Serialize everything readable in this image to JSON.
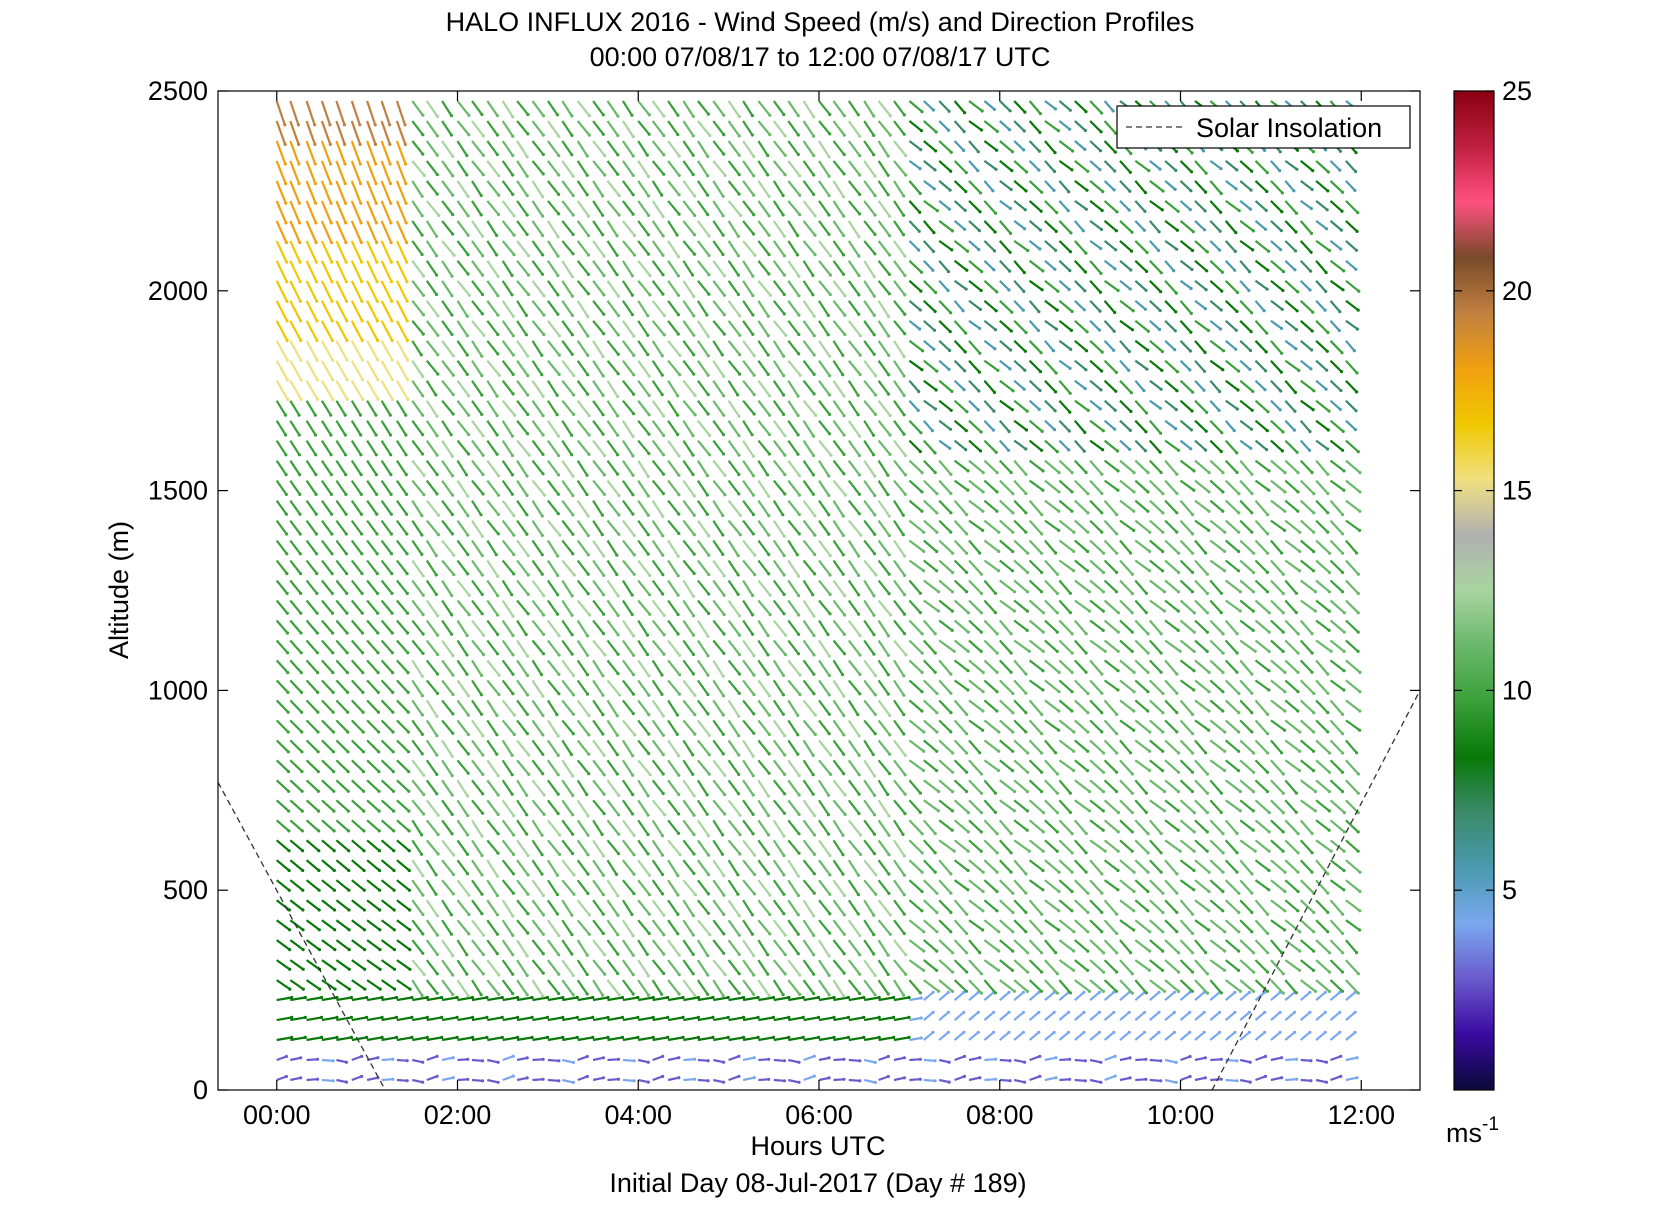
{
  "chart_data": {
    "type": "quiver",
    "title": "HALO INFLUX 2016 - Wind Speed (m/s) and Direction Profiles",
    "subtitle": "00:00 07/08/17 to 12:00 07/08/17  UTC",
    "xlabel": "Hours UTC",
    "ylabel": "Altitude (m)",
    "footer": "Initial Day 08-Jul-2017 (Day # 189)",
    "xlim": [
      -0.65,
      12.65
    ],
    "ylim": [
      0,
      2500
    ],
    "x_ticks": [
      0,
      2,
      4,
      6,
      8,
      10,
      12
    ],
    "x_tick_labels": [
      "00:00",
      "02:00",
      "04:00",
      "06:00",
      "08:00",
      "10:00",
      "12:00"
    ],
    "y_ticks": [
      0,
      500,
      1000,
      1500,
      2000,
      2500
    ],
    "y_tick_labels": [
      "0",
      "500",
      "1000",
      "1500",
      "2000",
      "2500"
    ],
    "colorbar": {
      "range": [
        0,
        25
      ],
      "ticks": [
        5,
        10,
        15,
        20,
        25
      ],
      "tick_labels": [
        "5",
        "10",
        "15",
        "20",
        "25"
      ],
      "unit": "ms",
      "unit_exp": "-1",
      "colors": [
        "#0a0a3a",
        "#3a0aa0",
        "#6a5acd",
        "#7aa8ee",
        "#4a9ab0",
        "#3a8a6a",
        "#087808",
        "#3aa03a",
        "#6ab86a",
        "#a8d4a0",
        "#b0b0b0",
        "#f0e080",
        "#f0c800",
        "#f0a010",
        "#c08040",
        "#7a4a2a",
        "#ff5080",
        "#c02040",
        "#8a0010"
      ]
    },
    "legend": {
      "position": "top-right",
      "entries": [
        {
          "name": "Solar Insolation",
          "style": "dashed",
          "color": "#333333"
        }
      ]
    },
    "solar_insolation": {
      "x": [
        -0.65,
        1.2,
        10.35,
        12.65
      ],
      "y": [
        770,
        0,
        0,
        1000
      ]
    },
    "profile_times": [
      0.0,
      0.15,
      0.33,
      0.5,
      0.66,
      0.83,
      1.0,
      1.16,
      1.33,
      1.5,
      1.66,
      1.83,
      2.0,
      2.16,
      2.33,
      2.5,
      2.66,
      2.83,
      3.0,
      3.16,
      3.33,
      3.5,
      3.66,
      3.83,
      4.0,
      4.16,
      4.33,
      4.5,
      4.66,
      4.83,
      5.0,
      5.16,
      5.33,
      5.5,
      5.66,
      5.83,
      6.0,
      6.16,
      6.33,
      6.5,
      6.66,
      6.83,
      7.0,
      7.16,
      7.33,
      7.5,
      7.66,
      7.83,
      8.0,
      8.16,
      8.33,
      8.5,
      8.66,
      8.83,
      9.0,
      9.16,
      9.33,
      9.5,
      9.66,
      9.83,
      10.0,
      10.16,
      10.33,
      10.5,
      10.66,
      10.83,
      11.0,
      11.16,
      11.33,
      11.5,
      11.66,
      11.83
    ],
    "altitude_step_m": 50
  }
}
